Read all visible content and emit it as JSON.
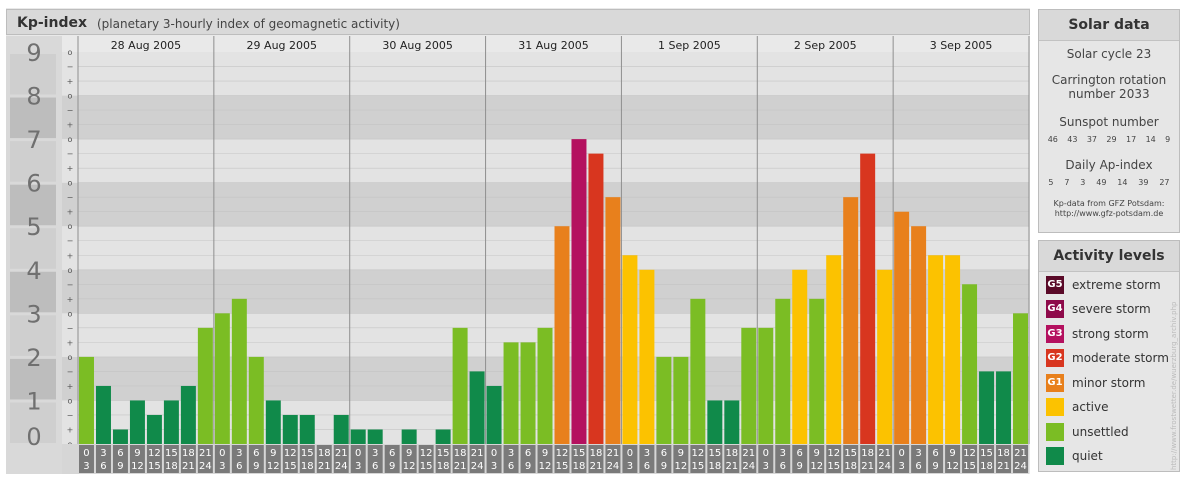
{
  "header": {
    "title": "Kp-index",
    "subtitle": "(planetary 3-hourly index of geomagnetic activity)"
  },
  "chart_data": {
    "type": "bar",
    "y_ticks": [
      "0",
      "1",
      "2",
      "3",
      "4",
      "5",
      "6",
      "7",
      "8",
      "9"
    ],
    "minor_tick_labels": [
      "o",
      "+",
      "−",
      "o",
      "+",
      "−",
      "o",
      "+",
      "−",
      "o",
      "+",
      "−",
      "o",
      "+",
      "−",
      "o",
      "+",
      "−",
      "o",
      "+",
      "−",
      "o",
      "+",
      "−",
      "o",
      "+",
      "−",
      "o"
    ],
    "ylim": [
      0,
      9
    ],
    "days": [
      "28 Aug 2005",
      "29 Aug 2005",
      "30 Aug 2005",
      "31 Aug 2005",
      "1 Sep 2005",
      "2 Sep 2005",
      "3 Sep 2005"
    ],
    "interval_start_hours": [
      "0",
      "3",
      "6",
      "9",
      "12",
      "15",
      "18",
      "21"
    ],
    "interval_end_hours": [
      "3",
      "6",
      "9",
      "12",
      "15",
      "18",
      "21",
      "24"
    ],
    "values": [
      [
        2.0,
        1.333,
        0.333,
        1.0,
        0.667,
        1.0,
        1.333,
        2.667
      ],
      [
        3.0,
        3.333,
        2.0,
        1.0,
        0.667,
        0.667,
        0.0,
        0.667
      ],
      [
        0.333,
        0.333,
        0.0,
        0.333,
        0.0,
        0.333,
        2.667,
        1.667
      ],
      [
        1.333,
        2.333,
        2.333,
        2.667,
        5.0,
        7.0,
        6.667,
        5.667
      ],
      [
        4.333,
        4.0,
        2.0,
        2.0,
        3.333,
        1.0,
        1.0,
        2.667
      ],
      [
        2.667,
        3.333,
        4.0,
        3.333,
        4.333,
        5.667,
        6.667,
        4.0
      ],
      [
        5.333,
        5.0,
        4.333,
        4.333,
        3.667,
        1.667,
        1.667,
        3.0
      ]
    ]
  },
  "solar": {
    "title": "Solar data",
    "cycle": "Solar cycle 23",
    "carrington_line1": "Carrington rotation",
    "carrington_line2": "number 2033",
    "sunspot_title": "Sunspot number",
    "sunspot_values": [
      "46",
      "43",
      "37",
      "29",
      "17",
      "14",
      "9"
    ],
    "ap_title": "Daily Ap-index",
    "ap_values": [
      "5",
      "7",
      "3",
      "49",
      "14",
      "39",
      "27"
    ],
    "source_line1": "Kp-data from GFZ Potsdam:",
    "source_line2": "http://www.gfz-potsdam.de"
  },
  "levels": {
    "title": "Activity levels",
    "items": [
      {
        "badge": "G5",
        "label": "extreme storm",
        "color": "#5a0a28"
      },
      {
        "badge": "G4",
        "label": "severe storm",
        "color": "#8e0a4a"
      },
      {
        "badge": "G3",
        "label": "strong storm",
        "color": "#b4115f"
      },
      {
        "badge": "G2",
        "label": "moderate storm",
        "color": "#d8361f"
      },
      {
        "badge": "G1",
        "label": "minor storm",
        "color": "#e8801c"
      },
      {
        "badge": "",
        "label": "active",
        "color": "#fcc200"
      },
      {
        "badge": "",
        "label": "unsettled",
        "color": "#7bbd24"
      },
      {
        "badge": "",
        "label": "quiet",
        "color": "#108a4a"
      }
    ]
  },
  "watermark": "http://www.frostwetter.de/wuerzburg_archiv.php"
}
